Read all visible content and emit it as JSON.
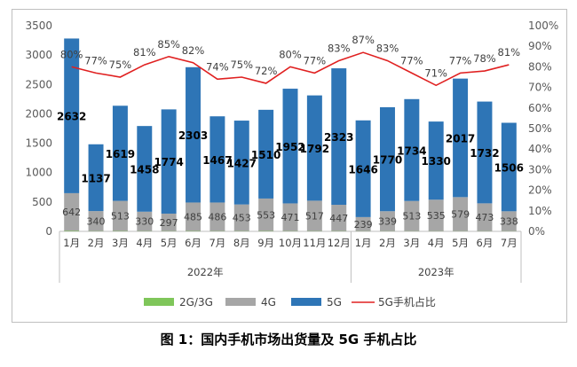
{
  "caption": "图 1：国内手机市场出货量及 5G 手机占比",
  "colors": {
    "g23": "#7fc65a",
    "g4": "#a6a6a6",
    "g5": "#2e75b6",
    "line": "#e02020",
    "axis": "#595959",
    "grid": "#d9d9d9"
  },
  "chart_data": {
    "type": "bar",
    "stacked": true,
    "categories": [
      "1月",
      "2月",
      "3月",
      "4月",
      "5月",
      "6月",
      "7月",
      "8月",
      "9月",
      "10月",
      "11月",
      "12月",
      "1月",
      "2月",
      "3月",
      "4月",
      "5月",
      "6月",
      "7月"
    ],
    "groups": [
      {
        "label": "2022年",
        "start": 0,
        "end": 11
      },
      {
        "label": "2023年",
        "start": 12,
        "end": 18
      }
    ],
    "series": [
      {
        "name": "2G/3G",
        "type": "bar",
        "axis": "left",
        "values": [
          8,
          5,
          6,
          5,
          5,
          6,
          5,
          5,
          6,
          5,
          5,
          5,
          4,
          4,
          4,
          4,
          4,
          4,
          4
        ],
        "labels_shown": false
      },
      {
        "name": "4G",
        "type": "bar",
        "axis": "left",
        "values": [
          642,
          340,
          513,
          330,
          297,
          485,
          486,
          453,
          553,
          471,
          517,
          447,
          239,
          339,
          513,
          535,
          579,
          473,
          338
        ]
      },
      {
        "name": "5G",
        "type": "bar",
        "axis": "left",
        "values": [
          2632,
          1137,
          1619,
          1458,
          1774,
          2303,
          1467,
          1427,
          1510,
          1952,
          1792,
          2323,
          1646,
          1770,
          1734,
          1330,
          2017,
          1732,
          1506
        ]
      },
      {
        "name": "5G手机占比",
        "type": "line",
        "axis": "right",
        "values": [
          80,
          77,
          75,
          81,
          85,
          82,
          74,
          75,
          72,
          80,
          77,
          83,
          87,
          83,
          77,
          71,
          77,
          78,
          81
        ]
      }
    ],
    "y_left": {
      "min": 0,
      "max": 3500,
      "ticks": [
        "0",
        "500",
        "1000",
        "1500",
        "2000",
        "2500",
        "3000",
        "3500"
      ]
    },
    "y_right": {
      "min": 0,
      "max": 100,
      "ticks": [
        "0%",
        "10%",
        "20%",
        "30%",
        "40%",
        "50%",
        "60%",
        "70%",
        "80%",
        "90%",
        "100%"
      ]
    },
    "legend_position": "bottom"
  }
}
